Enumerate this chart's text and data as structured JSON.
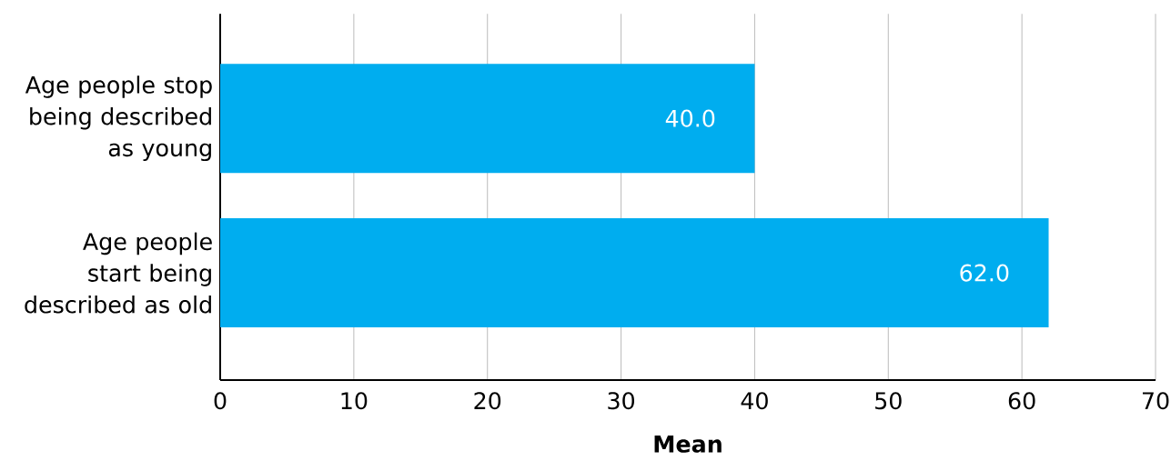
{
  "chart_data": {
    "type": "bar",
    "orientation": "horizontal",
    "categories": [
      "Age people stop being described as young",
      "Age people start being described as old"
    ],
    "values": [
      40.0,
      62.0
    ],
    "value_labels": [
      "40.0",
      "62.0"
    ],
    "color": "#00adef",
    "xlim": [
      0,
      70
    ],
    "xticks": [
      0,
      10,
      20,
      30,
      40,
      50,
      60,
      70
    ],
    "xlabel": "Mean",
    "grid": "x"
  }
}
